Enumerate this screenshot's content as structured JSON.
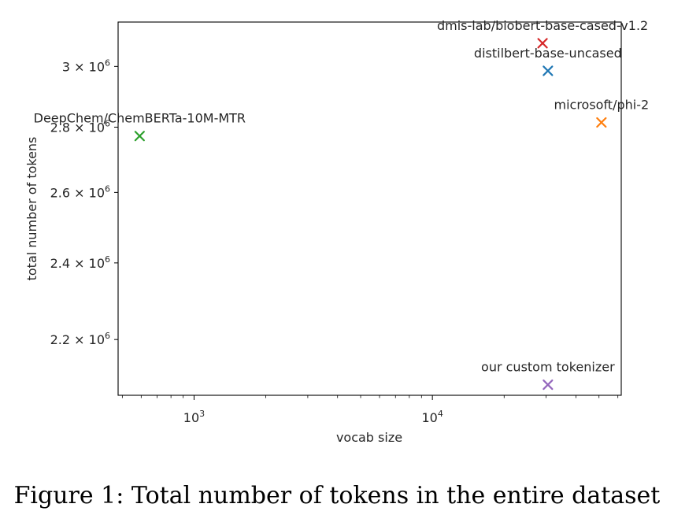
{
  "chart_data": {
    "type": "scatter",
    "xlabel": "vocab size",
    "ylabel": "total number of tokens",
    "x_scale": "log",
    "y_scale": "log",
    "xlim": [
      480,
      62000
    ],
    "ylim": [
      2065000,
      3155000
    ],
    "x_ticks": [
      {
        "value": 1000,
        "label": "10^3"
      },
      {
        "value": 10000,
        "label": "10^4"
      }
    ],
    "y_ticks": [
      {
        "value": 2200000,
        "label": "2.2 × 10^6"
      },
      {
        "value": 2400000,
        "label": "2.4 × 10^6"
      },
      {
        "value": 2600000,
        "label": "2.6 × 10^6"
      },
      {
        "value": 2800000,
        "label": "2.8 × 10^6"
      },
      {
        "value": 3000000,
        "label": "3 × 10^6"
      }
    ],
    "grid": false,
    "marker": "x",
    "points": [
      {
        "label": "dmis-lab/biobert-base-cased-v1.2",
        "x": 28996,
        "y": 3080000,
        "color": "#d62728"
      },
      {
        "label": "distilbert-base-uncased",
        "x": 30522,
        "y": 2985000,
        "color": "#1f77b4"
      },
      {
        "label": "microsoft/phi-2",
        "x": 51200,
        "y": 2815000,
        "color": "#ff7f0e"
      },
      {
        "label": "DeepChem/ChemBERTa-10M-MTR",
        "x": 591,
        "y": 2772000,
        "color": "#2ca02c"
      },
      {
        "label": "our custom tokenizer",
        "x": 30522,
        "y": 2090000,
        "color": "#9467bd"
      }
    ]
  },
  "caption": "Figure 1: Total number of tokens in the entire dataset"
}
